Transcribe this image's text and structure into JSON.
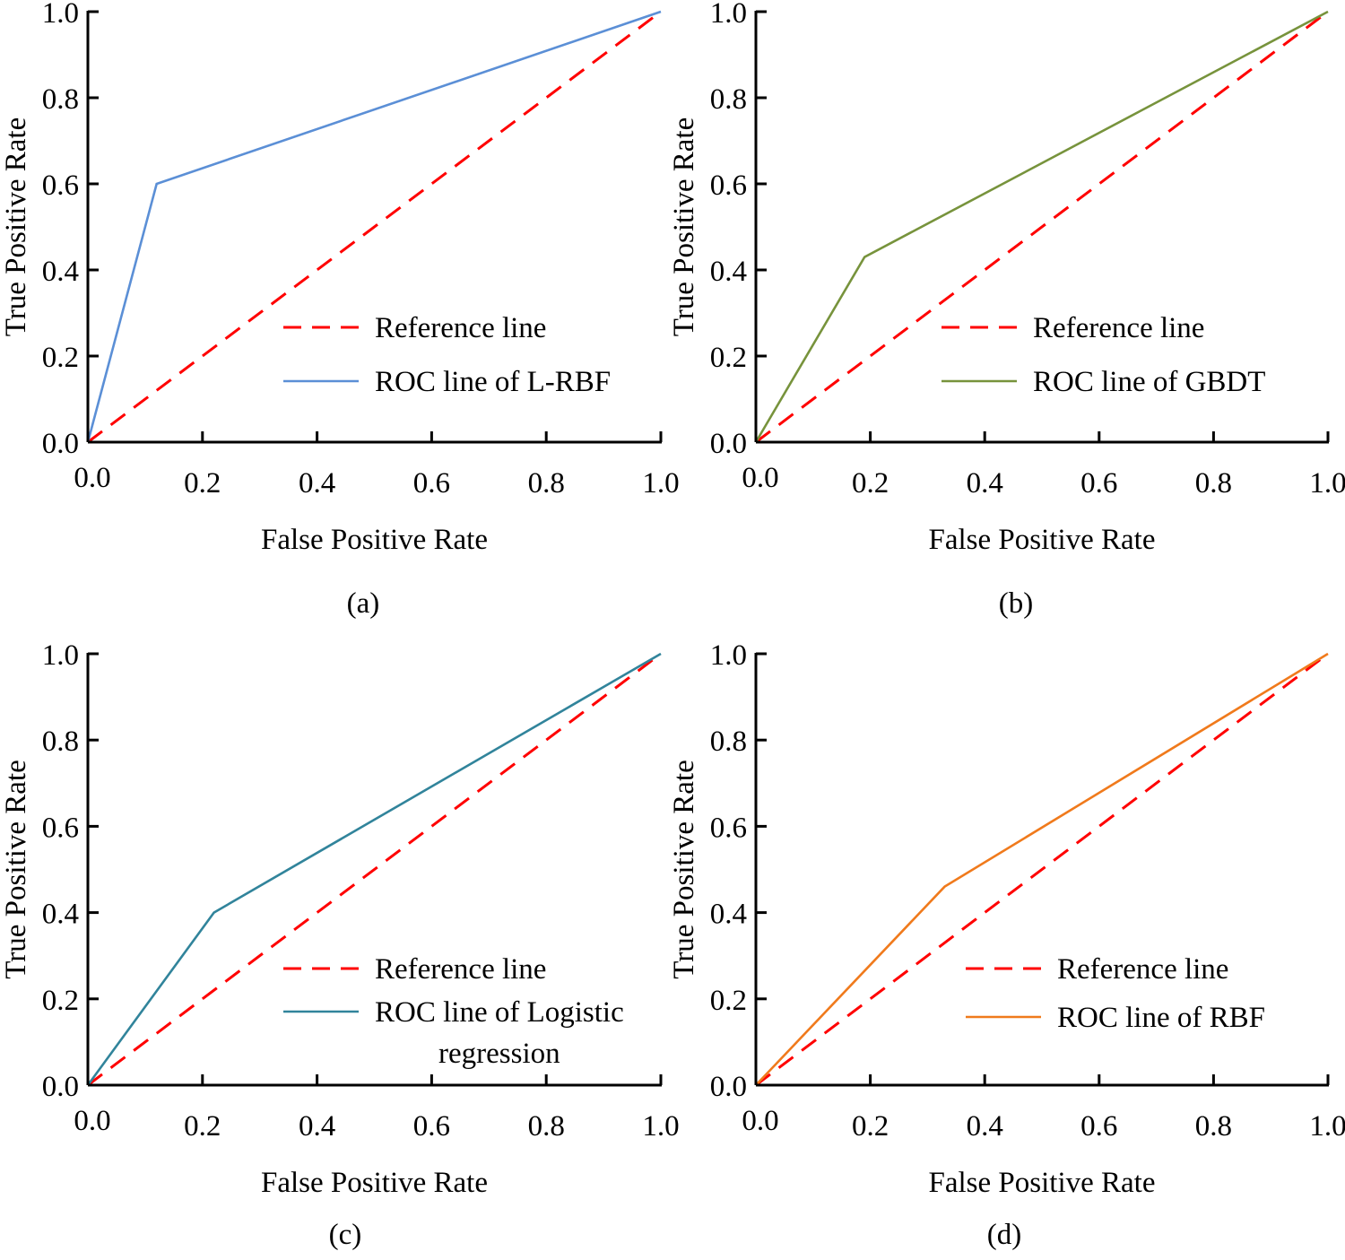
{
  "chart_data": [
    {
      "type": "line",
      "panel_label": "(a)",
      "xlabel": "False Positive Rate",
      "ylabel": "True Positive Rate",
      "xlim": [
        0,
        1
      ],
      "ylim": [
        0,
        1
      ],
      "xticks": [
        "0.0",
        "0.2",
        "0.4",
        "0.6",
        "0.8",
        "1.0"
      ],
      "yticks": [
        "0.0",
        "0.2",
        "0.4",
        "0.6",
        "0.8",
        "1.0"
      ],
      "legend_position": "lower-right",
      "series": [
        {
          "name": "Reference line",
          "style": "dashed",
          "color": "#ff0000",
          "x": [
            0,
            1
          ],
          "y": [
            0,
            1
          ],
          "legend_lines": [
            "Reference line"
          ]
        },
        {
          "name": "ROC line of L-RBF",
          "style": "solid",
          "color": "#5b8fd6",
          "x": [
            0,
            0.12,
            1
          ],
          "y": [
            0,
            0.6,
            1
          ],
          "legend_lines": [
            "ROC line of L-RBF"
          ]
        }
      ]
    },
    {
      "type": "line",
      "panel_label": "(b)",
      "xlabel": "False Positive Rate",
      "ylabel": "True Positive Rate",
      "xlim": [
        0,
        1
      ],
      "ylim": [
        0,
        1
      ],
      "xticks": [
        "0.0",
        "0.2",
        "0.4",
        "0.6",
        "0.8",
        "1.0"
      ],
      "yticks": [
        "0.0",
        "0.2",
        "0.4",
        "0.6",
        "0.8",
        "1.0"
      ],
      "legend_position": "lower-right",
      "series": [
        {
          "name": "Reference line",
          "style": "dashed",
          "color": "#ff0000",
          "x": [
            0,
            1
          ],
          "y": [
            0,
            1
          ],
          "legend_lines": [
            "Reference line"
          ]
        },
        {
          "name": "ROC line of GBDT",
          "style": "solid",
          "color": "#77933c",
          "x": [
            0,
            0.19,
            1
          ],
          "y": [
            0,
            0.43,
            1
          ],
          "legend_lines": [
            "ROC line of GBDT"
          ]
        }
      ]
    },
    {
      "type": "line",
      "panel_label": "(c)",
      "xlabel": "False Positive Rate",
      "ylabel": "True Positive Rate",
      "xlim": [
        0,
        1
      ],
      "ylim": [
        0,
        1
      ],
      "xticks": [
        "0.0",
        "0.2",
        "0.4",
        "0.6",
        "0.8",
        "1.0"
      ],
      "yticks": [
        "0.0",
        "0.2",
        "0.4",
        "0.6",
        "0.8",
        "1.0"
      ],
      "legend_position": "lower-right",
      "series": [
        {
          "name": "Reference line",
          "style": "dashed",
          "color": "#ff0000",
          "x": [
            0,
            1
          ],
          "y": [
            0,
            1
          ],
          "legend_lines": [
            "Reference line"
          ]
        },
        {
          "name": "ROC line of Logistic regression",
          "style": "solid",
          "color": "#31849b",
          "x": [
            0,
            0.22,
            1
          ],
          "y": [
            0,
            0.4,
            1
          ],
          "legend_lines": [
            "ROC line of Logistic",
            "regression"
          ]
        }
      ]
    },
    {
      "type": "line",
      "panel_label": "(d)",
      "xlabel": "False Positive Rate",
      "ylabel": "True Positive Rate",
      "xlim": [
        0,
        1
      ],
      "ylim": [
        0,
        1
      ],
      "xticks": [
        "0.0",
        "0.2",
        "0.4",
        "0.6",
        "0.8",
        "1.0"
      ],
      "yticks": [
        "0.0",
        "0.2",
        "0.4",
        "0.6",
        "0.8",
        "1.0"
      ],
      "legend_position": "lower-right",
      "series": [
        {
          "name": "Reference line",
          "style": "dashed",
          "color": "#ff0000",
          "x": [
            0,
            1
          ],
          "y": [
            0,
            1
          ],
          "legend_lines": [
            "Reference line"
          ]
        },
        {
          "name": "ROC line of RBF",
          "style": "solid",
          "color": "#f07a1c",
          "x": [
            0,
            0.33,
            1
          ],
          "y": [
            0,
            0.46,
            1
          ],
          "legend_lines": [
            "ROC line of RBF"
          ]
        }
      ]
    }
  ]
}
